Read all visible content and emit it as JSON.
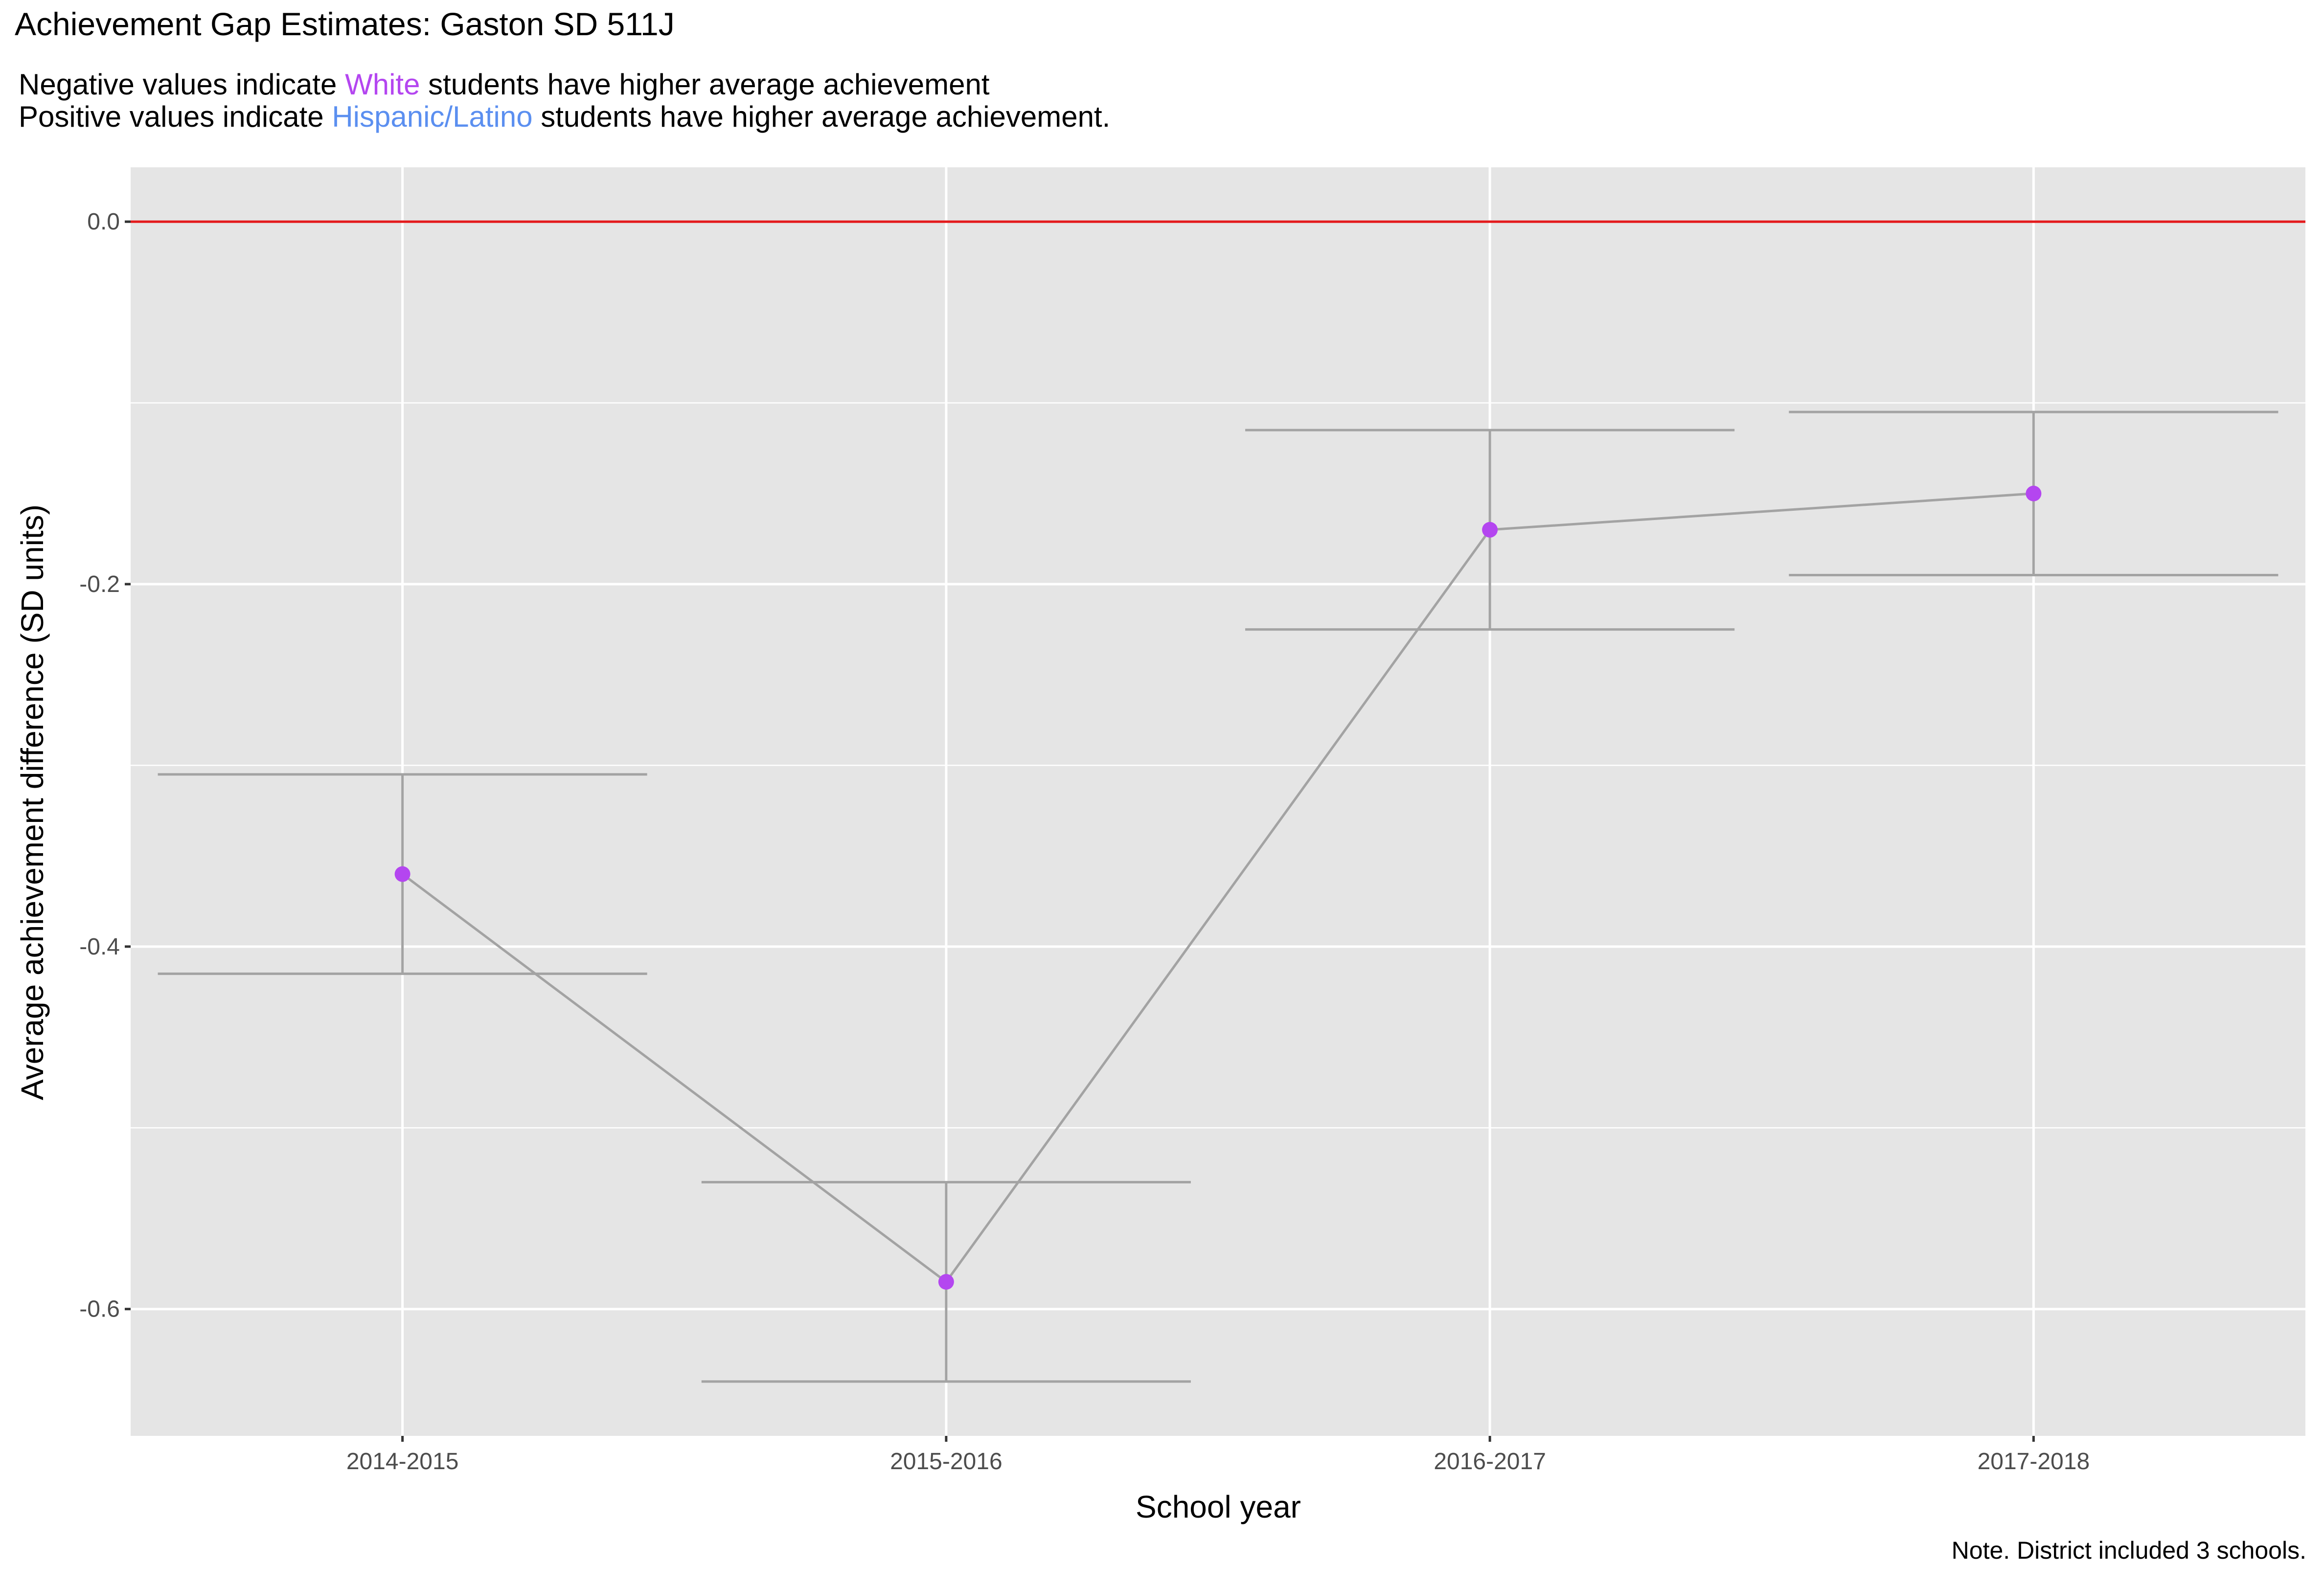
{
  "chart_data": {
    "type": "line",
    "title": "Achievement Gap Estimates: Gaston SD 511J",
    "subtitle": {
      "line1": {
        "prefix": "Negative values indicate ",
        "highlight": "White",
        "suffix": " students have higher average achievement"
      },
      "line2": {
        "prefix": "Positive values indicate ",
        "highlight": "Hispanic/Latino",
        "suffix": " students have higher average achievement."
      }
    },
    "xlabel": "School year",
    "ylabel": "Average achievement difference (SD units)",
    "note": "Note. District included 3 schools.",
    "categories": [
      "2014-2015",
      "2015-2016",
      "2016-2017",
      "2017-2018"
    ],
    "series": [
      {
        "values": [
          -0.36,
          -0.585,
          -0.17,
          -0.15
        ],
        "lower": [
          -0.415,
          -0.64,
          -0.225,
          -0.195
        ],
        "upper": [
          -0.305,
          -0.53,
          -0.115,
          -0.105
        ]
      }
    ],
    "yticks": [
      0.0,
      -0.2,
      -0.4,
      -0.6
    ],
    "ytick_labels": [
      "0.0",
      "-0.2",
      "-0.4",
      "-0.6"
    ],
    "ylim": [
      -0.67,
      0.03
    ],
    "reference_line": 0.0,
    "grid": true,
    "colors": {
      "panel": "#e5e5e5",
      "grid": "#ffffff",
      "point": "#b446f0",
      "line": "#a3a3a3",
      "reference": "#e31a1c",
      "white_label": "#b446f0",
      "hispanic_label": "#5b8ff0"
    }
  }
}
